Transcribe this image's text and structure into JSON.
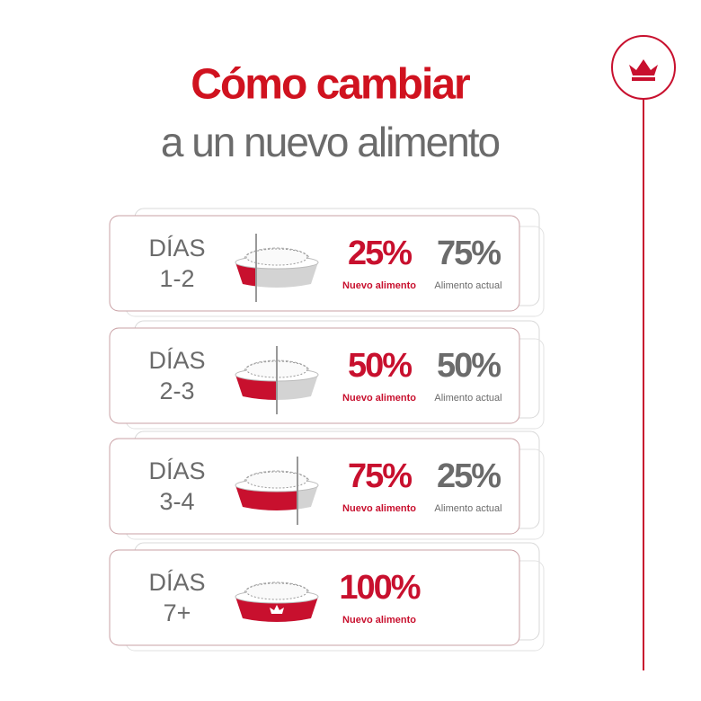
{
  "header": {
    "title": "Cómo cambiar",
    "subtitle": "a un nuevo alimento"
  },
  "rows": [
    {
      "days": "DÍAS",
      "range": "1-2",
      "new": "25%",
      "new_label": "Nuevo alimento",
      "current": "75%",
      "current_label": "Alimento actual"
    },
    {
      "days": "DÍAS",
      "range": "2-3",
      "new": "50%",
      "new_label": "Nuevo alimento",
      "current": "50%",
      "current_label": "Alimento actual"
    },
    {
      "days": "DÍAS",
      "range": "3-4",
      "new": "75%",
      "new_label": "Nuevo alimento",
      "current": "25%",
      "current_label": "Alimento actual"
    },
    {
      "days": "DÍAS",
      "range": "7+",
      "new": "100%",
      "new_label": "Nuevo alimento"
    }
  ]
}
